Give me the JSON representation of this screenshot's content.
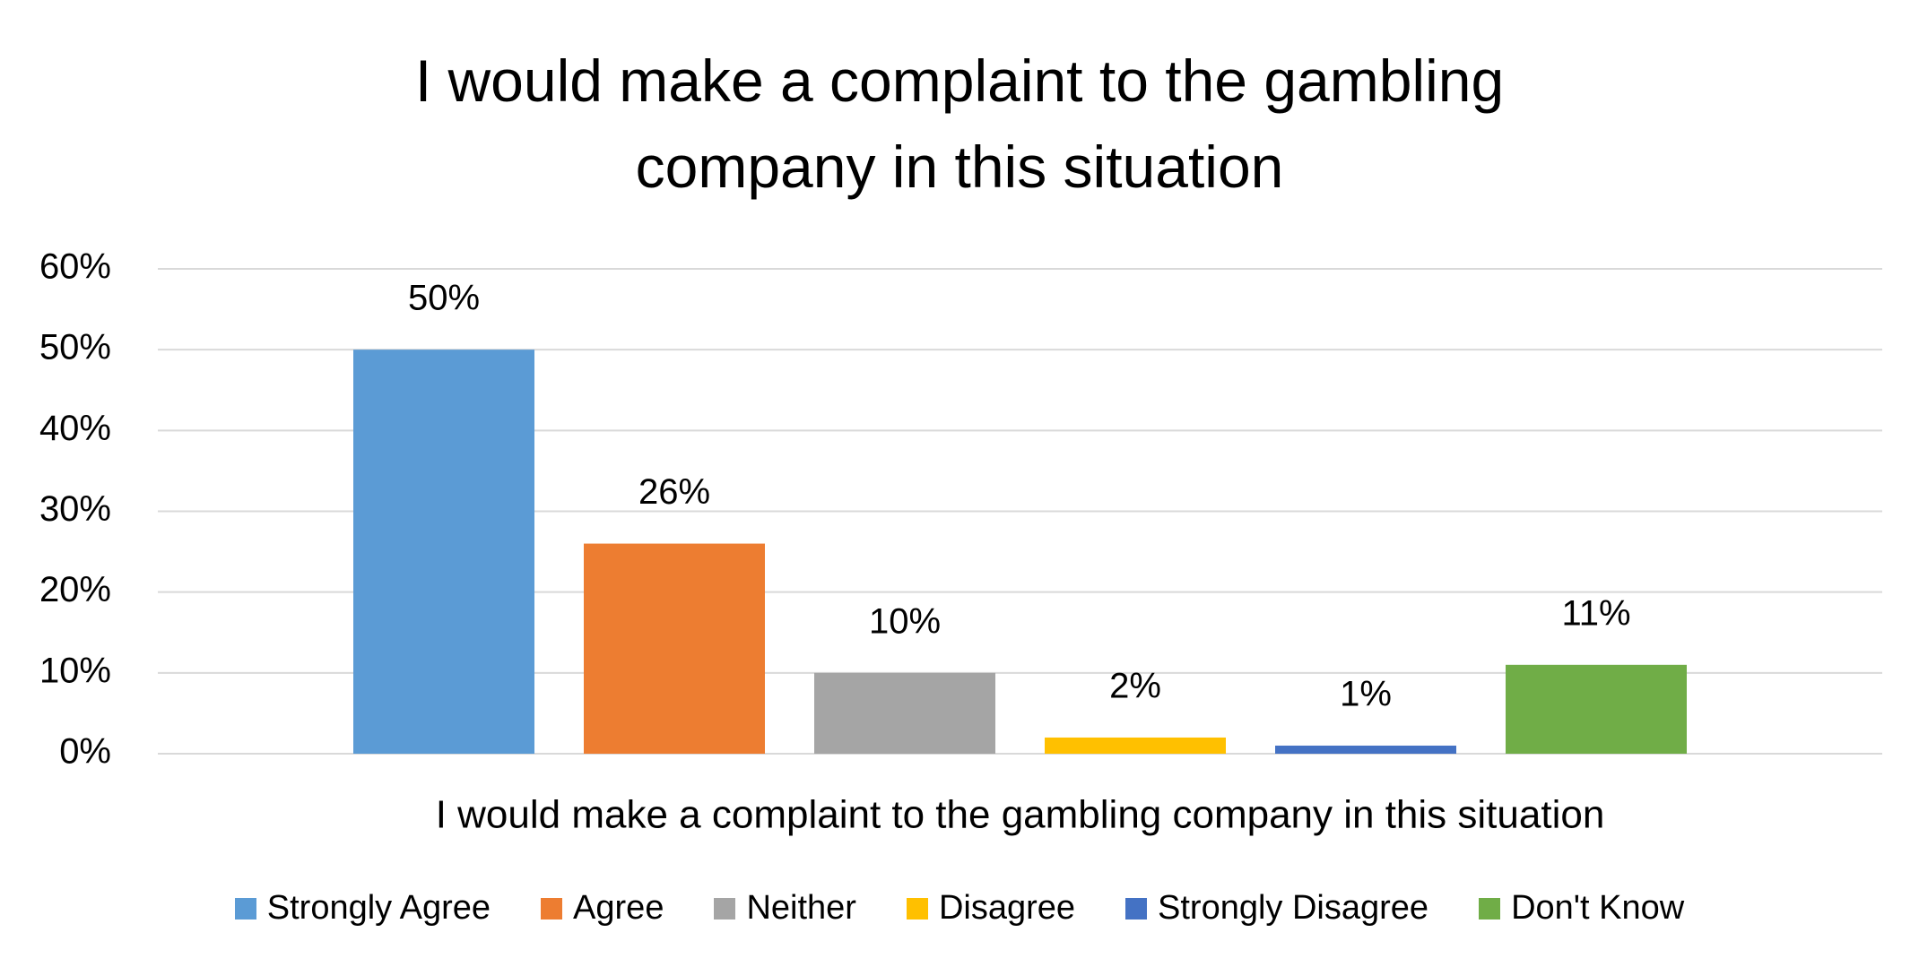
{
  "chart_data": {
    "type": "bar",
    "title": "I would make a complaint to the gambling company in this situation",
    "categories": [
      "I would make a complaint to the gambling company in this situation"
    ],
    "series": [
      {
        "name": "Strongly Agree",
        "color": "#5b9bd5",
        "values": [
          50
        ],
        "value_labels": [
          "50%"
        ]
      },
      {
        "name": "Agree",
        "color": "#ed7d31",
        "values": [
          26
        ],
        "value_labels": [
          "26%"
        ]
      },
      {
        "name": "Neither",
        "color": "#a5a5a5",
        "values": [
          10
        ],
        "value_labels": [
          "10%"
        ]
      },
      {
        "name": "Disagree",
        "color": "#ffc000",
        "values": [
          2
        ],
        "value_labels": [
          "2%"
        ]
      },
      {
        "name": "Strongly Disagree",
        "color": "#4472c4",
        "values": [
          1
        ],
        "value_labels": [
          "1%"
        ]
      },
      {
        "name": "Don't Know",
        "color": "#70ad47",
        "values": [
          11
        ],
        "value_labels": [
          "11%"
        ]
      }
    ],
    "ylim": [
      0,
      60
    ],
    "yticks": [
      {
        "value": 0,
        "label": "0%"
      },
      {
        "value": 10,
        "label": "10%"
      },
      {
        "value": 20,
        "label": "20%"
      },
      {
        "value": 30,
        "label": "30%"
      },
      {
        "value": 40,
        "label": "40%"
      },
      {
        "value": 50,
        "label": "50%"
      },
      {
        "value": 60,
        "label": "60%"
      }
    ],
    "grid": true,
    "legend": "bottom"
  }
}
